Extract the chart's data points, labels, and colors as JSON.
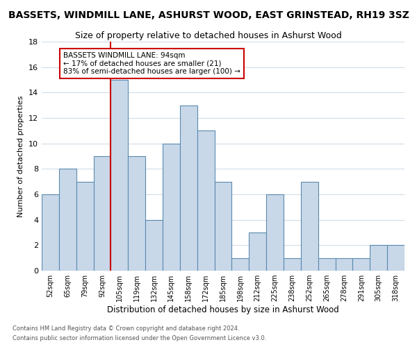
{
  "title": "BASSETS, WINDMILL LANE, ASHURST WOOD, EAST GRINSTEAD, RH19 3SZ",
  "subtitle": "Size of property relative to detached houses in Ashurst Wood",
  "xlabel": "Distribution of detached houses by size in Ashurst Wood",
  "ylabel": "Number of detached properties",
  "bar_labels": [
    "52sqm",
    "65sqm",
    "79sqm",
    "92sqm",
    "105sqm",
    "119sqm",
    "132sqm",
    "145sqm",
    "158sqm",
    "172sqm",
    "185sqm",
    "198sqm",
    "212sqm",
    "225sqm",
    "238sqm",
    "252sqm",
    "265sqm",
    "278sqm",
    "291sqm",
    "305sqm",
    "318sqm"
  ],
  "bar_values": [
    6,
    8,
    7,
    9,
    15,
    9,
    4,
    10,
    13,
    11,
    7,
    1,
    3,
    6,
    1,
    7,
    1,
    1,
    1,
    2,
    2
  ],
  "highlight_index": 3,
  "bar_color": "#c8d8e8",
  "bar_edge_color": "#5a8ab0",
  "highlight_line_color": "#cc0000",
  "ylim": [
    0,
    18
  ],
  "yticks": [
    0,
    2,
    4,
    6,
    8,
    10,
    12,
    14,
    16,
    18
  ],
  "annotation_text": "BASSETS WINDMILL LANE: 94sqm\n← 17% of detached houses are smaller (21)\n83% of semi-detached houses are larger (100) →",
  "annotation_box_color": "#ffffff",
  "annotation_box_edge": "#cc0000",
  "footnote1": "Contains HM Land Registry data © Crown copyright and database right 2024.",
  "footnote2": "Contains public sector information licensed under the Open Government Licence v3.0.",
  "bg_color": "#ffffff",
  "grid_color": "#d0dce8",
  "title_fontsize": 10,
  "subtitle_fontsize": 9
}
